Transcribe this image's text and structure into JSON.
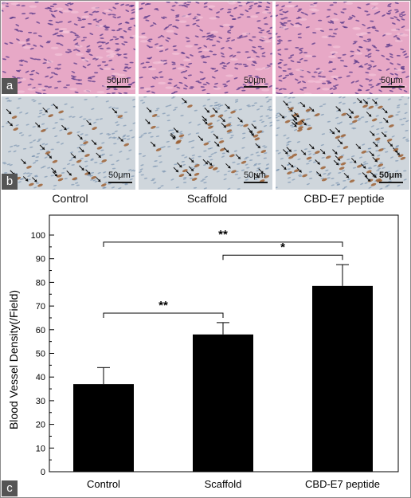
{
  "panels": {
    "a": {
      "tag": "a",
      "scale_label": "50μm"
    },
    "b": {
      "tag": "b",
      "scale_label": "50μm"
    },
    "c": {
      "tag": "c"
    }
  },
  "group_labels": [
    "Control",
    "Scaffold",
    "CBD-E7 peptide"
  ],
  "colors": {
    "he_background": "#e7a8c6",
    "he_nuclei": "#5a3a8a",
    "ihc_background": "#cfd6dc",
    "ihc_vessel": "#9a5a2a",
    "bar_fill": "#000000"
  },
  "chart_data": {
    "type": "bar",
    "title": "",
    "xlabel": "",
    "ylabel": "Blood Vessel Density(/Field)",
    "categories": [
      "Control",
      "Scaffold",
      "CBD-E7 peptide"
    ],
    "values": [
      37,
      58,
      78.5
    ],
    "errors": [
      7,
      5,
      9
    ],
    "ylim": [
      0,
      100
    ],
    "yticks": [
      0,
      10,
      20,
      30,
      40,
      50,
      60,
      70,
      80,
      90,
      100
    ],
    "grid": false,
    "significance": [
      {
        "from": 0,
        "to": 2,
        "label": "**"
      },
      {
        "from": 1,
        "to": 2,
        "label": "*"
      },
      {
        "from": 0,
        "to": 1,
        "label": "**"
      }
    ]
  }
}
